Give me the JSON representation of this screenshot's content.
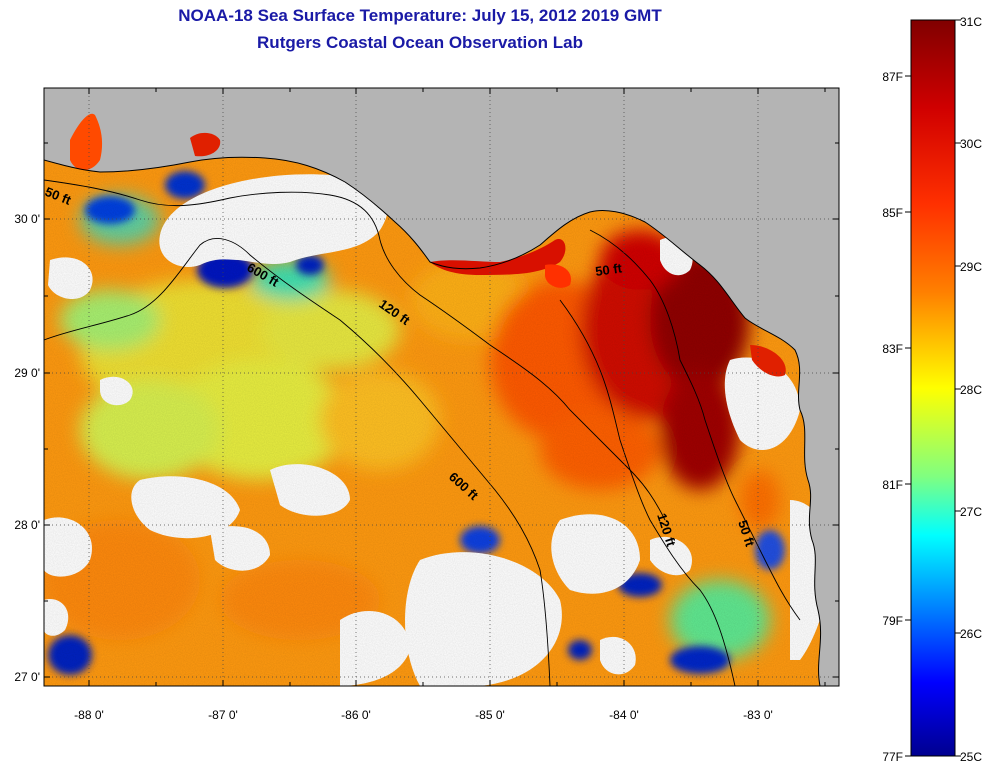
{
  "title": {
    "line1": "NOAA-18 Sea Surface Temperature:  July 15, 2012 2019 GMT",
    "line2": "Rutgers Coastal Ocean Observation Lab"
  },
  "axes": {
    "longitude_labels": [
      "-88 0'",
      "-87 0'",
      "-86 0'",
      "-85 0'",
      "-84 0'",
      "-83 0'"
    ],
    "latitude_labels": [
      "30 0'",
      "29 0'",
      "28 0'",
      "27 0'"
    ]
  },
  "contours": {
    "labels": [
      "50 ft",
      "600 ft",
      "120 ft",
      "50 ft",
      "600 ft",
      "120 ft",
      "50 ft"
    ]
  },
  "colorbar": {
    "celsius_labels": [
      "31C",
      "30C",
      "29C",
      "28C",
      "27C",
      "26C",
      "25C"
    ],
    "fahrenheit_labels": [
      "87F",
      "85F",
      "83F",
      "81F",
      "79F",
      "77F"
    ],
    "colors": [
      "#800000",
      "#ff0000",
      "#ff8000",
      "#ffff00",
      "#80ff80",
      "#00ffff",
      "#0080ff",
      "#0000ff",
      "#00008f"
    ]
  },
  "colors": {
    "land": "#b4b4b4",
    "title": "#1a1aa6",
    "no_data": "#ffffff"
  }
}
